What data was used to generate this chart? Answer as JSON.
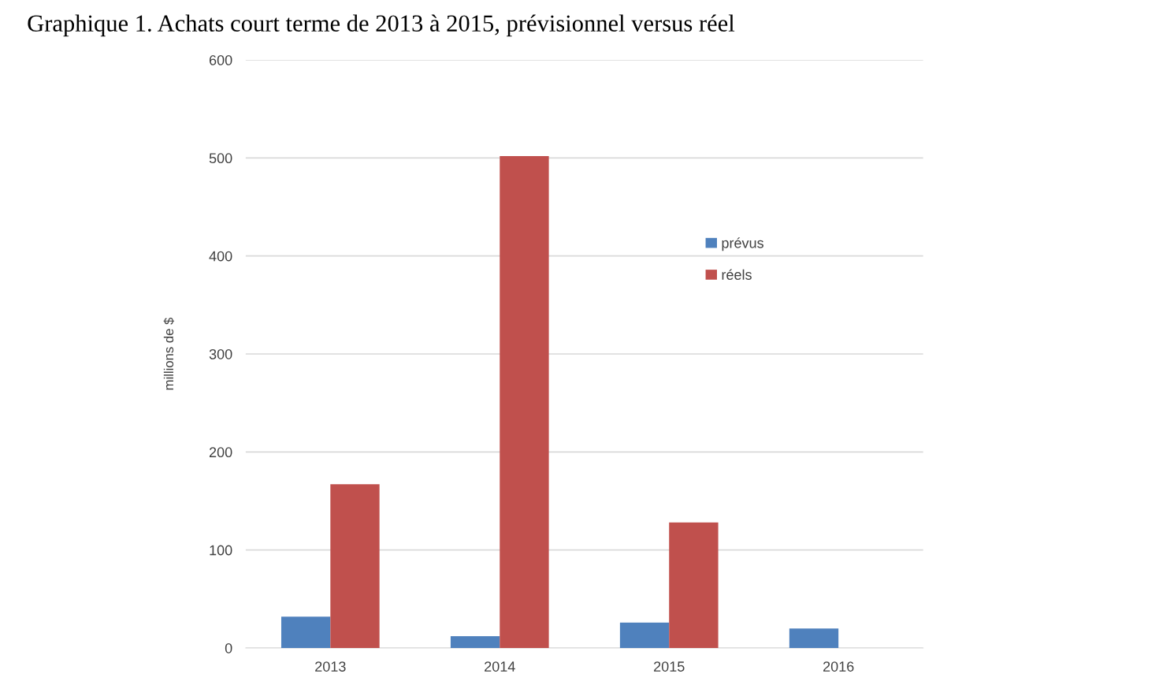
{
  "chart_data": {
    "type": "bar",
    "title": "Graphique 1. Achats court terme de 2013 à 2015, prévisionnel versus réel",
    "ylabel": "millions de $",
    "categories": [
      "2013",
      "2014",
      "2015",
      "2016"
    ],
    "series": [
      {
        "name": "prévus",
        "color": "#4f81bd",
        "values": [
          32,
          12,
          26,
          20
        ]
      },
      {
        "name": "réels",
        "color": "#c0504d",
        "values": [
          167,
          502,
          128,
          null
        ]
      }
    ],
    "ylim": [
      0,
      600
    ],
    "yticks": [
      0,
      100,
      200,
      300,
      400,
      500,
      600
    ],
    "grid": "y",
    "legend": "top right"
  }
}
